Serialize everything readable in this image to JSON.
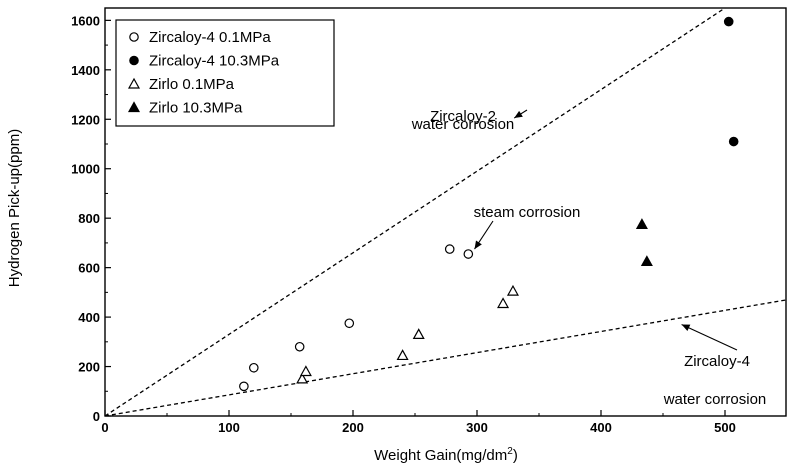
{
  "chart_data": {
    "type": "scatter",
    "xlabel": "Weight Gain(mg/dm",
    "xlabel_sup": "2",
    "xlabel_end": ")",
    "ylabel": "Hydrogen Pick-up(ppm)",
    "xlim": [
      0,
      550
    ],
    "ylim": [
      0,
      1650
    ],
    "x_ticks": [
      0,
      100,
      200,
      300,
      400,
      500
    ],
    "y_ticks": [
      0,
      200,
      400,
      600,
      800,
      1000,
      1200,
      1400,
      1600
    ],
    "grid": false,
    "legend_position": "top-left",
    "series": [
      {
        "name": "Zircaloy-4 0.1MPa",
        "marker": "circle-open",
        "points": [
          [
            112,
            120
          ],
          [
            120,
            195
          ],
          [
            157,
            280
          ],
          [
            197,
            375
          ],
          [
            278,
            675
          ],
          [
            293,
            655
          ]
        ]
      },
      {
        "name": "Zircaloy-4 10.3MPa",
        "marker": "circle-filled",
        "points": [
          [
            503,
            1595
          ],
          [
            507,
            1110
          ]
        ]
      },
      {
        "name": "Zirlo 0.1MPa",
        "marker": "triangle-open",
        "points": [
          [
            159,
            150
          ],
          [
            162,
            180
          ],
          [
            240,
            245
          ],
          [
            253,
            330
          ],
          [
            321,
            455
          ],
          [
            329,
            505
          ]
        ]
      },
      {
        "name": "Zirlo 10.3MPa",
        "marker": "triangle-filled",
        "points": [
          [
            433,
            775
          ],
          [
            437,
            625
          ]
        ]
      }
    ],
    "trend_lines": [
      {
        "id": "zircaloy-2",
        "from": [
          0,
          0
        ],
        "to": [
          500,
          1650
        ]
      },
      {
        "id": "zircaloy-4",
        "from": [
          0,
          0
        ],
        "to": [
          550,
          470
        ]
      }
    ],
    "annotations": [
      {
        "id": "zircaloy-2",
        "lines": [
          "Zircaloy-2",
          "water corrosion"
        ],
        "arrow_to": [
          330,
          1205
        ]
      },
      {
        "id": "steam",
        "lines": [
          "steam corrosion"
        ],
        "arrow_to": [
          298,
          675
        ]
      },
      {
        "id": "zircaloy-4",
        "lines": [
          "Zircaloy-4",
          "water corrosion"
        ],
        "arrow_to": [
          465,
          370
        ]
      }
    ]
  }
}
